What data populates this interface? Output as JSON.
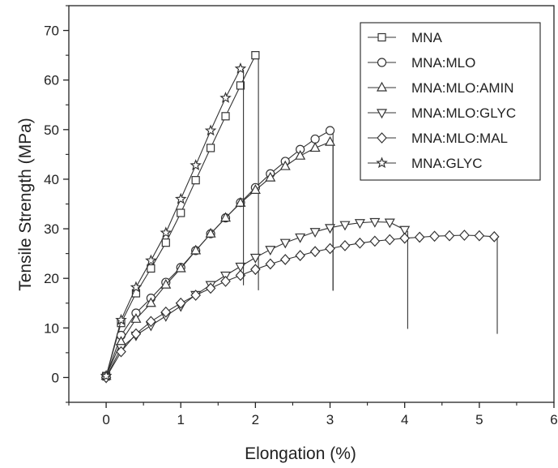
{
  "chart_data": {
    "type": "line",
    "xlabel": "Elongation (%)",
    "ylabel": "Tensile Strength (MPa)",
    "xlim": [
      -0.5,
      6
    ],
    "ylim": [
      -5,
      75
    ],
    "x_ticks": [
      0,
      1,
      2,
      3,
      4,
      5,
      6
    ],
    "x_tick_labels": [
      "0",
      "1",
      "2",
      "3",
      "4",
      "5",
      "6"
    ],
    "y_ticks": [
      0,
      10,
      20,
      30,
      40,
      50,
      60,
      70
    ],
    "y_tick_labels": [
      "0",
      "10",
      "20",
      "30",
      "40",
      "50",
      "60",
      "70"
    ],
    "grid": false,
    "legend_position": "top-right",
    "line_color": "#333333",
    "series": [
      {
        "name": "MNA",
        "marker": "square",
        "x": [
          0,
          0.2,
          0.4,
          0.6,
          0.8,
          1.0,
          1.2,
          1.4,
          1.6,
          1.8,
          2.0
        ],
        "y": [
          0.3,
          11.0,
          17.0,
          22.0,
          27.2,
          33.2,
          39.8,
          46.3,
          52.7,
          58.9,
          65.0
        ],
        "drop_to": 17.6
      },
      {
        "name": "MNA:MLO",
        "marker": "circle",
        "x": [
          0,
          0.2,
          0.4,
          0.6,
          0.8,
          1.0,
          1.2,
          1.4,
          1.6,
          1.8,
          2.0,
          2.2,
          2.4,
          2.6,
          2.8,
          3.0
        ],
        "y": [
          0.3,
          8.5,
          13.0,
          16.0,
          19.2,
          22.2,
          25.6,
          29.0,
          32.2,
          35.3,
          38.3,
          41.1,
          43.6,
          46.0,
          48.1,
          49.8
        ],
        "drop_to": 17.5
      },
      {
        "name": "MNA:MLO:AMIN",
        "marker": "triangle-up",
        "x": [
          0,
          0.2,
          0.4,
          0.6,
          0.8,
          1.0,
          1.2,
          1.4,
          1.6,
          1.8,
          2.0,
          2.2,
          2.4,
          2.6,
          2.8,
          3.0
        ],
        "y": [
          0.3,
          7.2,
          11.8,
          15.0,
          18.7,
          22.0,
          25.6,
          29.0,
          32.2,
          35.2,
          37.8,
          40.3,
          42.6,
          44.7,
          46.3,
          47.5
        ],
        "drop_to": 17.6
      },
      {
        "name": "MNA:MLO:GLYC",
        "marker": "triangle-down",
        "x": [
          0,
          0.2,
          0.4,
          0.6,
          0.8,
          1.0,
          1.2,
          1.4,
          1.6,
          1.8,
          2.0,
          2.2,
          2.4,
          2.6,
          2.8,
          3.0,
          3.2,
          3.4,
          3.6,
          3.8,
          4.0
        ],
        "y": [
          0,
          6.0,
          8.5,
          10.5,
          12.4,
          14.4,
          16.7,
          18.7,
          20.6,
          22.4,
          24.2,
          25.8,
          27.2,
          28.3,
          29.4,
          30.2,
          30.8,
          31.2,
          31.4,
          31.3,
          29.8
        ],
        "drop_to": 9.8
      },
      {
        "name": "MNA:MLO:MAL",
        "marker": "diamond",
        "x": [
          0,
          0.2,
          0.4,
          0.6,
          0.8,
          1.0,
          1.2,
          1.4,
          1.6,
          1.8,
          2.0,
          2.2,
          2.4,
          2.6,
          2.8,
          3.0,
          3.2,
          3.4,
          3.6,
          3.8,
          4.0,
          4.2,
          4.4,
          4.6,
          4.8,
          5.0,
          5.2
        ],
        "y": [
          0,
          5.2,
          8.8,
          11.3,
          13.2,
          15.0,
          16.6,
          18.0,
          19.4,
          20.6,
          21.8,
          22.9,
          23.8,
          24.6,
          25.4,
          26.0,
          26.6,
          27.1,
          27.5,
          27.8,
          28.1,
          28.3,
          28.5,
          28.6,
          28.7,
          28.6,
          28.4
        ],
        "drop_to": 8.8
      },
      {
        "name": "MNA:GLYC",
        "marker": "star",
        "x": [
          0,
          0.2,
          0.4,
          0.6,
          0.8,
          1.0,
          1.2,
          1.4,
          1.6,
          1.8
        ],
        "y": [
          0.3,
          11.6,
          18.2,
          23.6,
          29.2,
          36.0,
          42.8,
          49.8,
          56.4,
          62.3
        ],
        "drop_to": 18.6
      }
    ]
  }
}
